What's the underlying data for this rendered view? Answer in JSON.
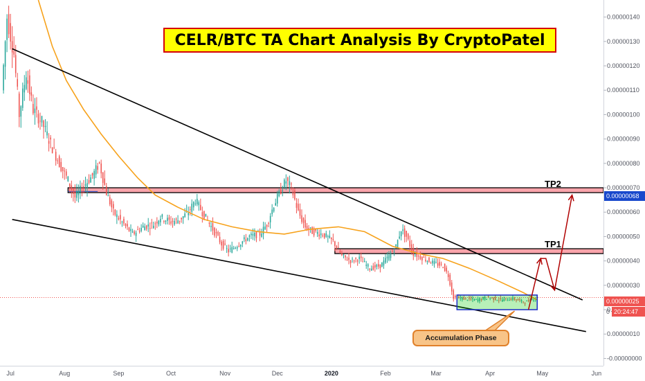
{
  "chart_data": {
    "type": "candlestick",
    "title": "CELR/BTC TA Chart Analysis By CryptoPatel",
    "y_axis": {
      "ticks": [
        "0.00000140",
        "0.00000130",
        "0.00000120",
        "0.00000110",
        "0.00000100",
        "0.00000090",
        "0.00000080",
        "0.00000070",
        "0.00000060",
        "0.00000050",
        "0.00000040",
        "0.00000030",
        "0.00000020",
        "0.00000010",
        "-0.00000000"
      ],
      "tick_values": [
        1.4,
        1.3,
        1.2,
        1.1,
        1.0,
        0.9,
        0.8,
        0.7,
        0.6,
        0.5,
        0.4,
        0.3,
        0.2,
        0.1,
        0.0
      ],
      "range": [
        -0.03,
        1.47
      ],
      "unit_note": "values in 0.000001 BTC"
    },
    "x_axis": {
      "labels": [
        "Jul",
        "Aug",
        "Sep",
        "Oct",
        "Nov",
        "Dec",
        "2020",
        "Feb",
        "Mar",
        "Apr",
        "May",
        "Jun"
      ],
      "bold": [
        false,
        false,
        false,
        false,
        false,
        false,
        true,
        false,
        false,
        false,
        false,
        false
      ],
      "range": [
        "2019-06-25",
        "2020-06-05"
      ]
    },
    "price_path": [
      [
        "2019-06-27",
        1.1
      ],
      [
        "2019-06-30",
        1.4
      ],
      [
        "2019-07-04",
        1.25
      ],
      [
        "2019-07-07",
        1.0
      ],
      [
        "2019-07-11",
        1.17
      ],
      [
        "2019-07-15",
        1.02
      ],
      [
        "2019-07-20",
        0.97
      ],
      [
        "2019-07-25",
        0.88
      ],
      [
        "2019-07-30",
        0.8
      ],
      [
        "2019-08-04",
        0.73
      ],
      [
        "2019-08-08",
        0.66
      ],
      [
        "2019-08-12",
        0.7
      ],
      [
        "2019-08-18",
        0.75
      ],
      [
        "2019-08-22",
        0.8
      ],
      [
        "2019-08-26",
        0.68
      ],
      [
        "2019-08-30",
        0.6
      ],
      [
        "2019-09-05",
        0.55
      ],
      [
        "2019-09-10",
        0.51
      ],
      [
        "2019-09-16",
        0.54
      ],
      [
        "2019-09-22",
        0.55
      ],
      [
        "2019-09-26",
        0.58
      ],
      [
        "2019-10-02",
        0.56
      ],
      [
        "2019-10-07",
        0.57
      ],
      [
        "2019-10-12",
        0.6
      ],
      [
        "2019-10-16",
        0.65
      ],
      [
        "2019-10-20",
        0.6
      ],
      [
        "2019-10-26",
        0.53
      ],
      [
        "2019-10-31",
        0.47
      ],
      [
        "2019-11-04",
        0.44
      ],
      [
        "2019-11-10",
        0.47
      ],
      [
        "2019-11-16",
        0.5
      ],
      [
        "2019-11-22",
        0.51
      ],
      [
        "2019-11-26",
        0.55
      ],
      [
        "2019-11-30",
        0.63
      ],
      [
        "2019-12-04",
        0.69
      ],
      [
        "2019-12-07",
        0.73
      ],
      [
        "2019-12-10",
        0.7
      ],
      [
        "2019-12-14",
        0.6
      ],
      [
        "2019-12-18",
        0.54
      ],
      [
        "2019-12-22",
        0.52
      ],
      [
        "2019-12-28",
        0.51
      ],
      [
        "2020-01-03",
        0.48
      ],
      [
        "2020-01-08",
        0.42
      ],
      [
        "2020-01-13",
        0.4
      ],
      [
        "2020-01-18",
        0.41
      ],
      [
        "2020-01-24",
        0.37
      ],
      [
        "2020-01-30",
        0.38
      ],
      [
        "2020-02-04",
        0.42
      ],
      [
        "2020-02-08",
        0.46
      ],
      [
        "2020-02-11",
        0.53
      ],
      [
        "2020-02-14",
        0.5
      ],
      [
        "2020-02-18",
        0.43
      ],
      [
        "2020-02-24",
        0.41
      ],
      [
        "2020-03-01",
        0.39
      ],
      [
        "2020-03-06",
        0.38
      ],
      [
        "2020-03-09",
        0.34
      ],
      [
        "2020-03-12",
        0.25
      ],
      [
        "2020-03-18",
        0.245
      ],
      [
        "2020-03-25",
        0.24
      ],
      [
        "2020-04-01",
        0.25
      ],
      [
        "2020-04-08",
        0.24
      ],
      [
        "2020-04-15",
        0.245
      ],
      [
        "2020-04-22",
        0.23
      ],
      [
        "2020-04-28",
        0.25
      ]
    ],
    "moving_average": [
      [
        "2019-07-17",
        1.47
      ],
      [
        "2019-07-25",
        1.28
      ],
      [
        "2019-08-02",
        1.14
      ],
      [
        "2019-08-12",
        1.02
      ],
      [
        "2019-08-22",
        0.92
      ],
      [
        "2019-09-01",
        0.83
      ],
      [
        "2019-09-12",
        0.74
      ],
      [
        "2019-09-22",
        0.67
      ],
      [
        "2019-10-05",
        0.62
      ],
      [
        "2019-10-20",
        0.57
      ],
      [
        "2019-11-05",
        0.54
      ],
      [
        "2019-11-20",
        0.52
      ],
      [
        "2019-12-05",
        0.51
      ],
      [
        "2019-12-20",
        0.53
      ],
      [
        "2020-01-05",
        0.54
      ],
      [
        "2020-01-20",
        0.52
      ],
      [
        "2020-02-05",
        0.46
      ],
      [
        "2020-02-20",
        0.43
      ],
      [
        "2020-03-05",
        0.41
      ],
      [
        "2020-03-20",
        0.37
      ],
      [
        "2020-04-05",
        0.32
      ],
      [
        "2020-04-20",
        0.27
      ],
      [
        "2020-04-28",
        0.24
      ]
    ],
    "trend_lines": [
      {
        "from": [
          "2019-07-02",
          1.27
        ],
        "to": [
          "2020-05-24",
          0.24
        ]
      },
      {
        "from": [
          "2019-07-02",
          0.57
        ],
        "to": [
          "2020-05-26",
          0.11
        ]
      }
    ],
    "resistance_zones": [
      {
        "label": "TP2",
        "low": 0.68,
        "high": 0.7,
        "from": "2019-08-03",
        "to": "2020-06-05"
      },
      {
        "label": "TP1",
        "low": 0.43,
        "high": 0.45,
        "from": "2020-01-03",
        "to": "2020-06-05"
      }
    ],
    "accumulation_box": {
      "label": "Accumulation Phase",
      "from": "2020-03-13",
      "to": "2020-04-28",
      "low": 0.2,
      "high": 0.26
    },
    "projection": [
      [
        "2020-04-23",
        0.2
      ],
      [
        "2020-04-30",
        0.41
      ],
      [
        "2020-05-03",
        0.41
      ],
      [
        "2020-05-08",
        0.28
      ],
      [
        "2020-05-18",
        0.67
      ]
    ],
    "current_price": {
      "value": "0.00000025",
      "countdown": "20:24:47"
    },
    "marked_price": {
      "value": "0.00000068"
    },
    "countdown_prefix": "0"
  }
}
